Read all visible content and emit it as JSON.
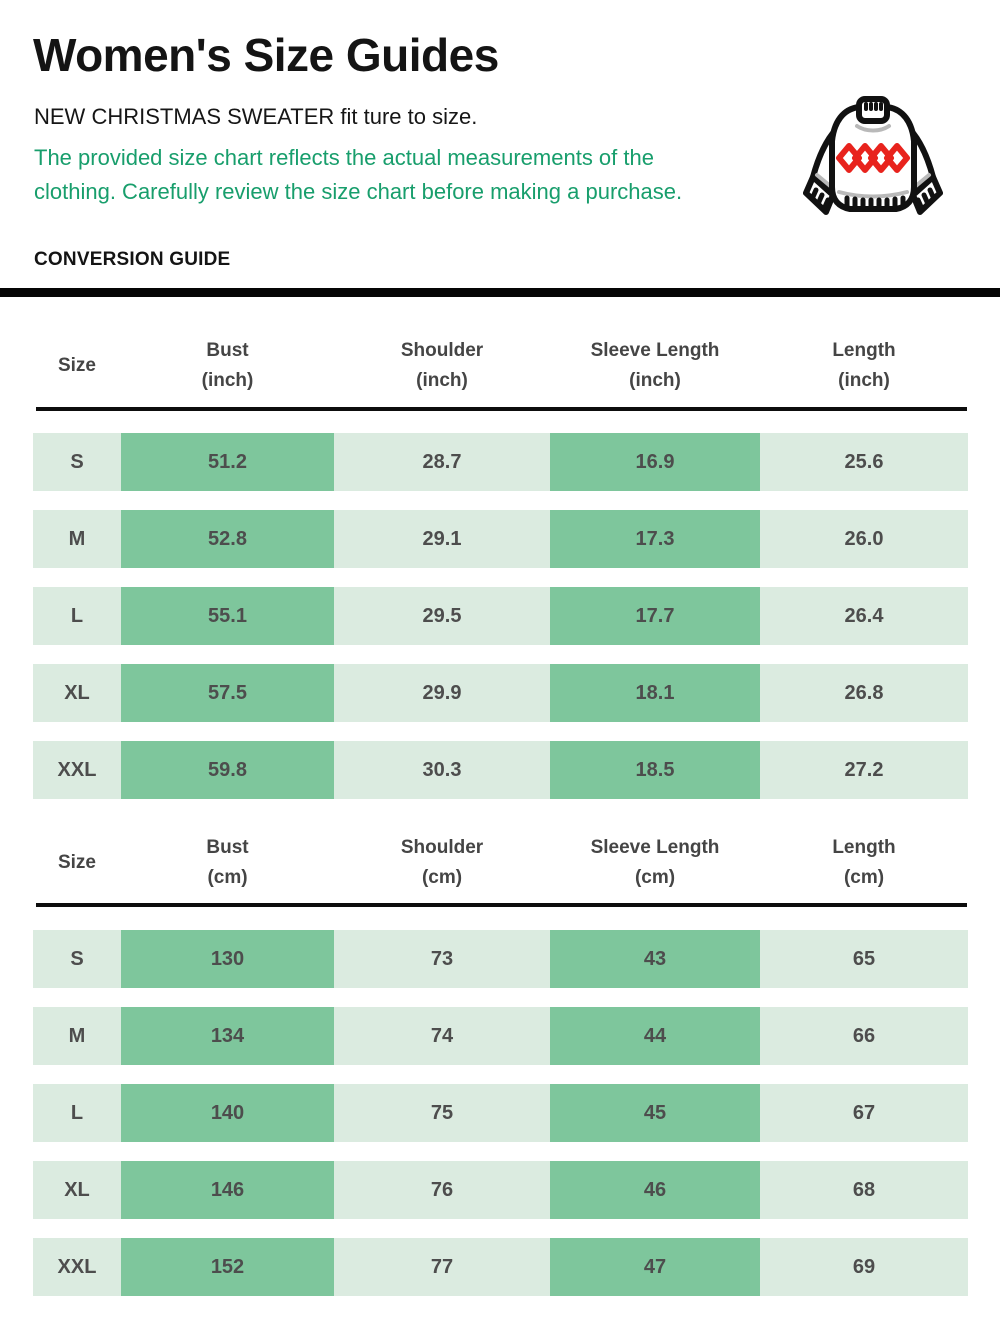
{
  "header": {
    "title": "Women's Size Guides",
    "subtitle": "NEW CHRISTMAS SWEATER fit ture to size.",
    "note": "The provided size chart reflects the actual measurements of the clothing. Carefully review the size chart before making a purchase.",
    "section_label": "CONVERSION GUIDE",
    "sweater_icon": "christmas-sweater-icon"
  },
  "colors": {
    "note_green": "#189e6c",
    "row_light_green": "#dbebe0",
    "cell_dark_green": "#7ec69c",
    "cell_text_gray": "#4d4d4d",
    "divider_black": "#050505",
    "diamond_red": "#e8231d"
  },
  "chart_data": [
    {
      "type": "table",
      "columns": [
        "Size",
        "Bust (inch)",
        "Shoulder (inch)",
        "Sleeve Length (inch)",
        "Length (inch)"
      ],
      "column_lines": [
        [
          "Size"
        ],
        [
          "Bust",
          "(inch)"
        ],
        [
          "Shoulder",
          "(inch)"
        ],
        [
          "Sleeve Length",
          "(inch)"
        ],
        [
          "Length",
          "(inch)"
        ]
      ],
      "rows": [
        [
          "S",
          "51.2",
          "28.7",
          "16.9",
          "25.6"
        ],
        [
          "M",
          "52.8",
          "29.1",
          "17.3",
          "26.0"
        ],
        [
          "L",
          "55.1",
          "29.5",
          "17.7",
          "26.4"
        ],
        [
          "XL",
          "57.5",
          "29.9",
          "18.1",
          "26.8"
        ],
        [
          "XXL",
          "59.8",
          "30.3",
          "18.5",
          "27.2"
        ]
      ]
    },
    {
      "type": "table",
      "columns": [
        "Size",
        "Bust (cm)",
        "Shoulder (cm)",
        "Sleeve Length (cm)",
        "Length (cm)"
      ],
      "column_lines": [
        [
          "Size"
        ],
        [
          "Bust",
          "(cm)"
        ],
        [
          "Shoulder",
          "(cm)"
        ],
        [
          "Sleeve Length",
          "(cm)"
        ],
        [
          "Length",
          "(cm)"
        ]
      ],
      "rows": [
        [
          "S",
          "130",
          "73",
          "43",
          "65"
        ],
        [
          "M",
          "134",
          "74",
          "44",
          "66"
        ],
        [
          "L",
          "140",
          "75",
          "45",
          "67"
        ],
        [
          "XL",
          "146",
          "76",
          "46",
          "68"
        ],
        [
          "XXL",
          "152",
          "77",
          "47",
          "69"
        ]
      ]
    }
  ]
}
